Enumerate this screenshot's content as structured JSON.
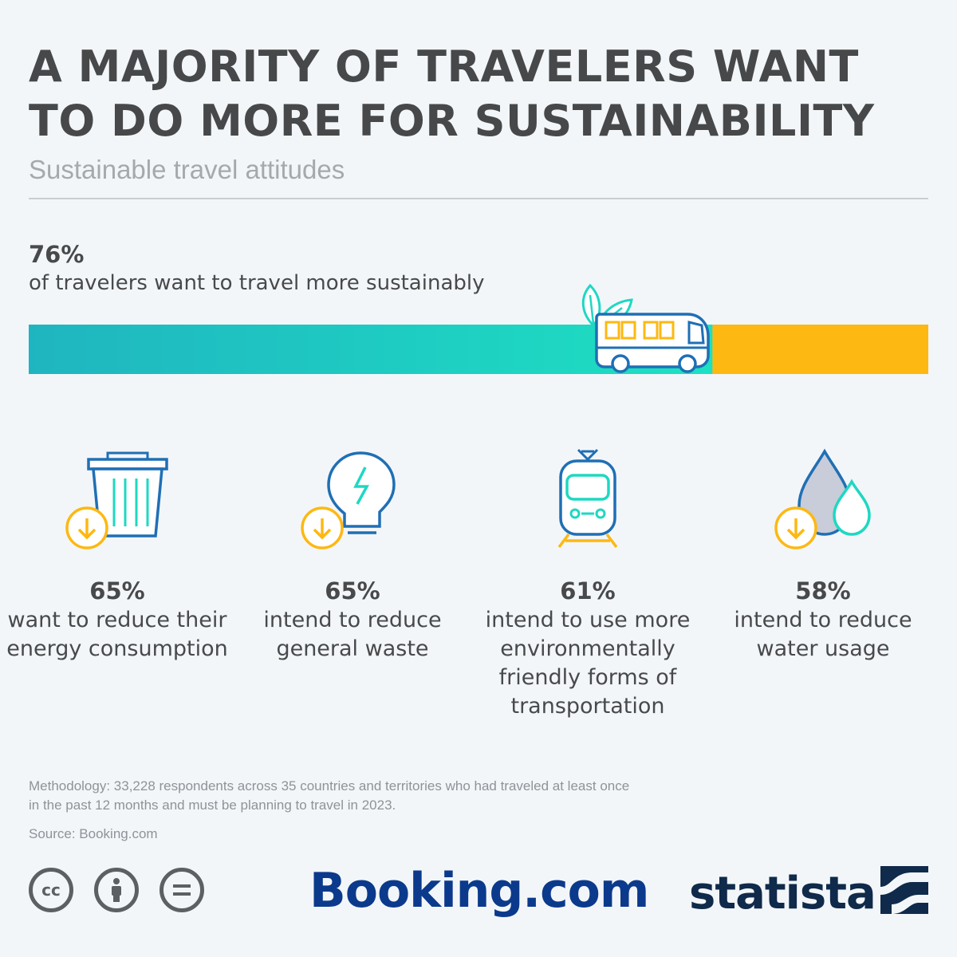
{
  "title": "A MAJORITY OF TRAVELERS WANT TO DO MORE FOR SUSTAINABILITY",
  "subtitle": "Sustainable travel attitudes",
  "hero": {
    "value_label": "76%",
    "text": "of travelers want to travel more sustainably",
    "value": 76,
    "fill_color": "#1ed8c2",
    "rest_color": "#fdb812"
  },
  "stats": [
    {
      "value_label": "65%",
      "text": "want to reduce their energy consumption",
      "icon": "trash-can-icon"
    },
    {
      "value_label": "65%",
      "text": "intend to reduce general waste",
      "icon": "light-bulb-icon"
    },
    {
      "value_label": "61%",
      "text": "intend to use more environmentally friendly forms of transportation",
      "icon": "train-icon"
    },
    {
      "value_label": "58%",
      "text": "intend to reduce water usage",
      "icon": "water-drop-icon"
    }
  ],
  "chart_data": {
    "type": "bar",
    "categories": [
      "of travelers want to travel more sustainably",
      "want to reduce their energy consumption",
      "intend to reduce general waste",
      "intend to use more environmentally friendly forms of transportation",
      "intend to reduce water usage"
    ],
    "values": [
      76,
      65,
      65,
      61,
      58
    ],
    "title": "A MAJORITY OF TRAVELERS WANT TO DO MORE FOR SUSTAINABILITY",
    "subtitle": "Sustainable travel attitudes",
    "ylim": [
      0,
      100
    ]
  },
  "methodology": "Methodology: 33,228 respondents across 35 countries and territories who had traveled at least once in the past 12 months and must be planning to travel in 2023.",
  "source": "Source: Booking.com",
  "license_icons": [
    "cc-icon",
    "attribution-icon",
    "no-derivatives-icon"
  ],
  "logos": {
    "booking": "Booking.com",
    "statista": "statista"
  },
  "colors": {
    "title": "#464849",
    "subtitle": "#a6a9ac",
    "icon_blue": "#1f6fb5",
    "icon_teal": "#1ed8c2",
    "icon_yellow": "#fdb812",
    "booking_blue": "#0b3a8c",
    "statista_navy": "#0f2a4a"
  }
}
